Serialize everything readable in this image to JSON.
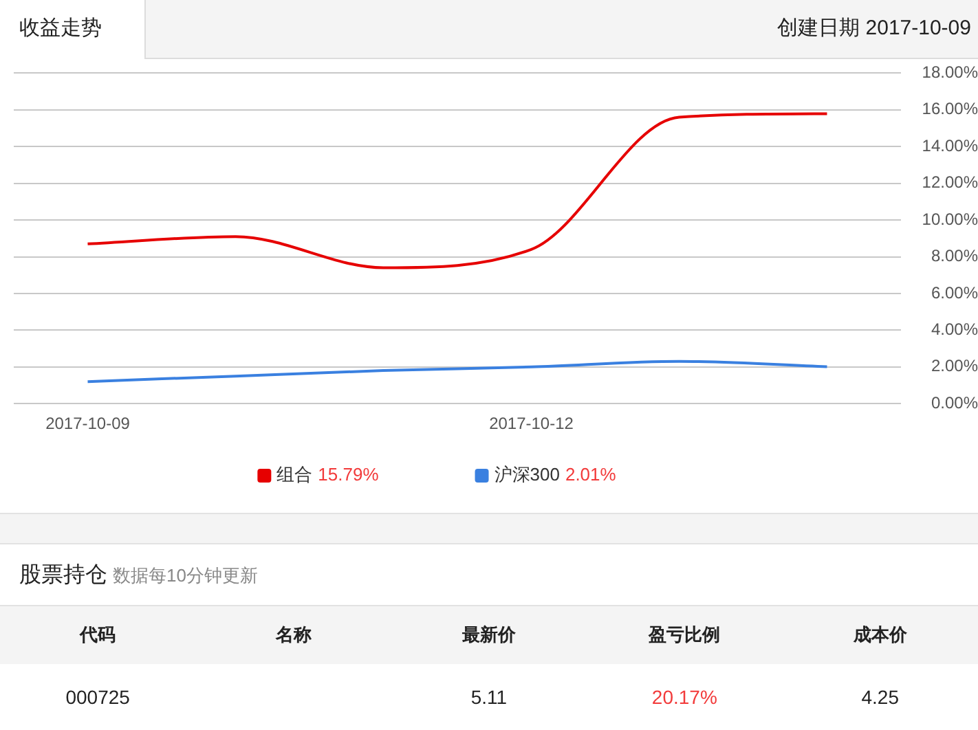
{
  "chart_data": {
    "type": "line",
    "title": "收益走势",
    "subtitle": "创建日期 2017-10-09",
    "categories": [
      "2017-10-09",
      null,
      null,
      "2017-10-12",
      null,
      null
    ],
    "series": [
      {
        "name": "组合",
        "color": "#e60000",
        "values": [
          8.7,
          9.1,
          7.4,
          8.4,
          15.6,
          15.79
        ]
      },
      {
        "name": "沪深300",
        "color": "#3a80e0",
        "values": [
          1.2,
          1.5,
          1.8,
          2.0,
          2.3,
          2.01
        ]
      }
    ],
    "ylim": [
      0,
      18
    ],
    "yticks": [
      {
        "value": 0,
        "label": "0.00%"
      },
      {
        "value": 2,
        "label": "2.00%"
      },
      {
        "value": 4,
        "label": "4.00%"
      },
      {
        "value": 6,
        "label": "6.00%"
      },
      {
        "value": 8,
        "label": "8.00%"
      },
      {
        "value": 10,
        "label": "10.00%"
      },
      {
        "value": 12,
        "label": "12.00%"
      },
      {
        "value": 14,
        "label": "14.00%"
      },
      {
        "value": 16,
        "label": "16.00%"
      },
      {
        "value": 18,
        "label": "18.00%"
      }
    ],
    "grid": "y",
    "legend": "bottom",
    "marker": "none",
    "annotations": [
      "15.79%",
      "2.01%",
      "股票持仓",
      "数据每10分钟更新",
      "代码",
      "名称",
      "最新价",
      "盈亏比例",
      "成本价",
      "000725",
      "5.11",
      "20.17%",
      "4.25"
    ]
  }
}
